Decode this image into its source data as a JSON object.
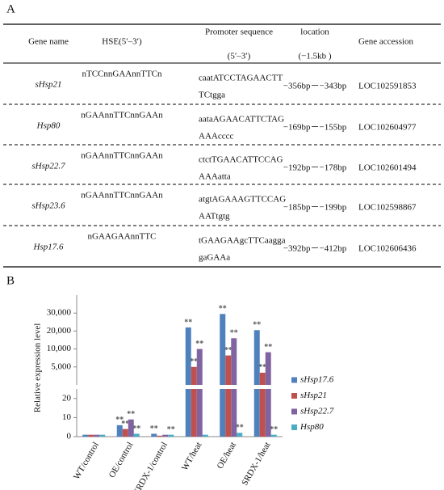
{
  "panel_a": {
    "label": "A",
    "header": {
      "gene": "Gene name",
      "hse": "HSE(5′–3′)",
      "promoter": [
        "Promoter sequence",
        "(5′–3′)"
      ],
      "location": [
        "location",
        "(−1.5kb )"
      ],
      "accession": "Gene accession"
    },
    "rows": [
      {
        "gene": "sHsp21",
        "hse": "nTCCnnGAAnnTTCn",
        "promoter": [
          "caatATCCTAGAACTT",
          "TCtgga"
        ],
        "location": "−356bp－−343bp",
        "accession": "LOC102591853"
      },
      {
        "gene": "Hsp80",
        "hse": "nGAAnnTTCnnGAAn",
        "promoter": [
          "aataAGAACATTCTAG",
          "AAAcccc"
        ],
        "location": "−169bp－−155bp",
        "accession": "LOC102604977"
      },
      {
        "gene": "sHsp22.7",
        "hse": "nGAAnnTTCnnGAAn",
        "promoter": [
          "ctctTGAACATTCCAG",
          "AAAatta"
        ],
        "location": "−192bp－−178bp",
        "accession": "LOC102601494"
      },
      {
        "gene": "sHsp23.6",
        "hse": "nGAAnnTTCnnGAAn",
        "promoter": [
          "atgtAGAAAGTTCCAG",
          "AATtgtg"
        ],
        "location": "−185bp－−199bp",
        "accession": "LOC102598867"
      },
      {
        "gene": "Hsp17.6",
        "hse": "nGAAGAAnnTTC",
        "promoter": [
          "tGAAGAAgcTTCaagga",
          "gaGAAa"
        ],
        "location": "−392bp－−412bp",
        "accession": "LOC102606436"
      }
    ]
  },
  "chart_data": {
    "type": "bar",
    "label": "B",
    "y_label": "Relative expression level",
    "categories": [
      "WT/control",
      "OE/control",
      "SRDX-1/control",
      "WT/heat",
      "OE/heat",
      "SRDX-1/heat"
    ],
    "series": [
      {
        "name": "sHsp17.6",
        "color": "#4f81bd",
        "values": [
          1,
          6,
          1.5,
          22000,
          29500,
          20500
        ],
        "annotations": [
          null,
          "**",
          "**",
          "**",
          "**",
          "**"
        ]
      },
      {
        "name": "sHsp21",
        "color": "#c0504d",
        "values": [
          1,
          4,
          0.5,
          5000,
          8200,
          3400
        ],
        "annotations": [
          null,
          "**",
          null,
          "**",
          "**",
          "**"
        ]
      },
      {
        "name": "sHsp22.7",
        "color": "#8064a2",
        "values": [
          1,
          9,
          1,
          10000,
          16000,
          9100
        ],
        "annotations": [
          null,
          "**",
          null,
          "**",
          "**",
          "**"
        ]
      },
      {
        "name": "Hsp80",
        "color": "#4bacc6",
        "values": [
          1,
          1.5,
          1,
          1,
          2,
          1
        ],
        "annotations": [
          null,
          "**",
          "**",
          null,
          "**",
          "**"
        ]
      }
    ],
    "upper": {
      "ylim": [
        25,
        35000
      ],
      "yticks": [
        {
          "value": 5000,
          "label": "5,000"
        },
        {
          "value": 10000,
          "label": "10,000"
        },
        {
          "value": 20000,
          "label": "20,000"
        },
        {
          "value": 30000,
          "label": "30,000"
        }
      ]
    },
    "lower": {
      "ylim": [
        0,
        25
      ],
      "yticks": [
        0,
        10,
        20
      ]
    }
  }
}
